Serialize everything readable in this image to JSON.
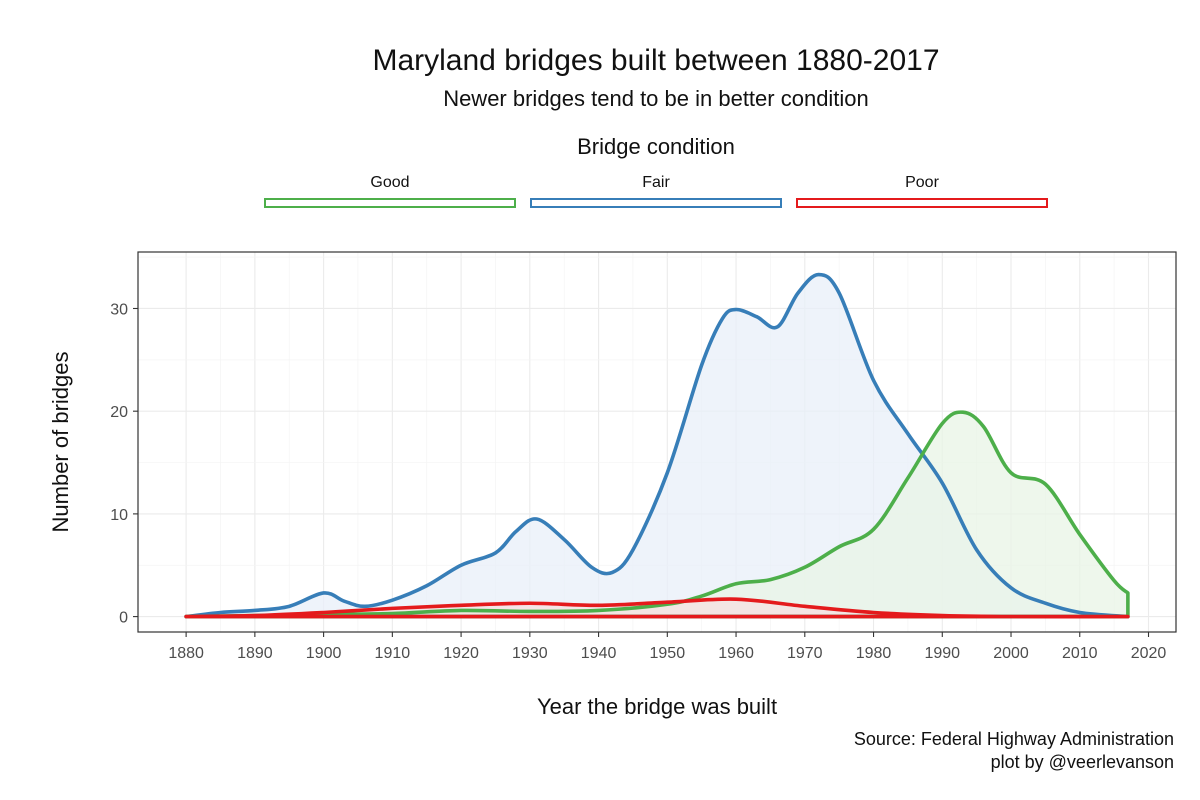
{
  "chart_data": {
    "type": "area",
    "title": "Maryland bridges built between 1880-2017",
    "subtitle": "Newer bridges tend to be in better condition",
    "xlabel": "Year the bridge was built",
    "ylabel": "Number of bridges",
    "xlim": [
      1873,
      2024
    ],
    "ylim": [
      -1.5,
      35.5
    ],
    "x_ticks": [
      1880,
      1890,
      1900,
      1910,
      1920,
      1930,
      1940,
      1950,
      1960,
      1970,
      1980,
      1990,
      2000,
      2010,
      2020
    ],
    "y_ticks": [
      0,
      10,
      20,
      30
    ],
    "grid": true,
    "legend": {
      "title": "Bridge condition",
      "placement": "top"
    },
    "caption": [
      "Source: Federal Highway Administration",
      "plot by @veerlevanson"
    ],
    "series": [
      {
        "name": "Good",
        "color": "#4DAF4A",
        "fill": "#E8F4E6",
        "x": [
          1880,
          1890,
          1900,
          1910,
          1920,
          1930,
          1940,
          1950,
          1955,
          1960,
          1965,
          1970,
          1975,
          1980,
          1985,
          1990,
          1993,
          1996,
          2000,
          2005,
          2010,
          2015,
          2017
        ],
        "y": [
          0,
          0.1,
          0.2,
          0.3,
          0.6,
          0.5,
          0.6,
          1.2,
          2.0,
          3.2,
          3.6,
          4.8,
          6.8,
          8.5,
          13.5,
          18.8,
          19.9,
          18.5,
          14.0,
          12.9,
          8.0,
          3.5,
          2.3
        ]
      },
      {
        "name": "Fair",
        "color": "#377EB8",
        "fill": "#E8EFF8",
        "x": [
          1880,
          1885,
          1890,
          1895,
          1900,
          1903,
          1906,
          1910,
          1915,
          1920,
          1925,
          1928,
          1931,
          1935,
          1939,
          1942,
          1945,
          1950,
          1955,
          1958,
          1960,
          1963,
          1966,
          1969,
          1972,
          1975,
          1980,
          1985,
          1990,
          1995,
          2000,
          2005,
          2010,
          2017
        ],
        "y": [
          0,
          0.4,
          0.6,
          1.0,
          2.3,
          1.5,
          1.0,
          1.6,
          3.0,
          5.0,
          6.2,
          8.3,
          9.5,
          7.5,
          4.8,
          4.3,
          6.5,
          14.0,
          24.5,
          29.0,
          29.9,
          29.2,
          28.2,
          31.5,
          33.3,
          31.5,
          23.0,
          17.8,
          13.0,
          6.5,
          2.8,
          1.3,
          0.4,
          0.0
        ]
      },
      {
        "name": "Poor",
        "color": "#E41A1C",
        "fill": "#F5E0E0",
        "x": [
          1880,
          1890,
          1900,
          1910,
          1920,
          1930,
          1940,
          1950,
          1960,
          1970,
          1980,
          1990,
          2000,
          2017
        ],
        "y": [
          0,
          0.1,
          0.4,
          0.8,
          1.1,
          1.3,
          1.1,
          1.4,
          1.7,
          1.0,
          0.4,
          0.1,
          0.0,
          0.0
        ]
      }
    ]
  }
}
